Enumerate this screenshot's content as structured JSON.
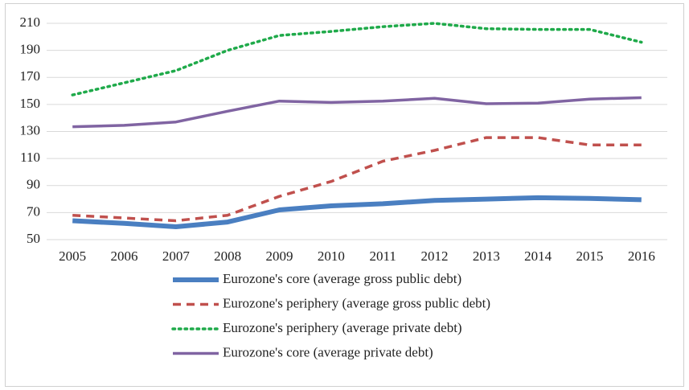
{
  "chart_data": {
    "type": "line",
    "categories": [
      "2005",
      "2006",
      "2007",
      "2008",
      "2009",
      "2010",
      "2011",
      "2012",
      "2013",
      "2014",
      "2015",
      "2016"
    ],
    "series": [
      {
        "name": "Eurozone's core (average gross public debt)",
        "color": "#4a7fc1",
        "width": 6,
        "dash": "solid",
        "values": [
          64,
          62,
          59.5,
          63,
          72,
          75,
          76.5,
          79,
          80,
          81,
          80.5,
          79.5
        ]
      },
      {
        "name": "Eurozone's periphery (average gross public debt)",
        "color": "#c0504d",
        "width": 3.5,
        "dash": "dash",
        "values": [
          68,
          66,
          64,
          68,
          82,
          93,
          108,
          116,
          125.5,
          125.5,
          120,
          120
        ]
      },
      {
        "name": "Eurozone's periphery (average private debt)",
        "color": "#1faa4a",
        "width": 3.5,
        "dash": "dot",
        "values": [
          157,
          166,
          175,
          190,
          201,
          204,
          207.5,
          210,
          206,
          205.5,
          205.5,
          196
        ]
      },
      {
        "name": "Eurozone's core (average private debt)",
        "color": "#8064a2",
        "width": 3.5,
        "dash": "solid",
        "values": [
          133.5,
          134.5,
          137,
          145,
          152.5,
          151.5,
          152.5,
          154.5,
          150.5,
          151,
          154,
          155
        ]
      }
    ],
    "ylim": [
      50,
      210
    ],
    "yticks": [
      50,
      70,
      90,
      110,
      130,
      150,
      170,
      190,
      210
    ],
    "grid": true,
    "legend": "bottom"
  }
}
